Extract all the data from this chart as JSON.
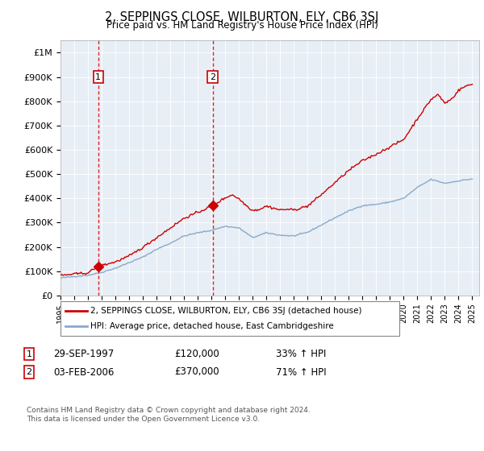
{
  "title": "2, SEPPINGS CLOSE, WILBURTON, ELY, CB6 3SJ",
  "subtitle": "Price paid vs. HM Land Registry's House Price Index (HPI)",
  "legend_line1": "2, SEPPINGS CLOSE, WILBURTON, ELY, CB6 3SJ (detached house)",
  "legend_line2": "HPI: Average price, detached house, East Cambridgeshire",
  "sale1_date": "29-SEP-1997",
  "sale1_price": "£120,000",
  "sale1_hpi": "33% ↑ HPI",
  "sale1_x": 1997.75,
  "sale1_y": 120000,
  "sale2_date": "03-FEB-2006",
  "sale2_price": "£370,000",
  "sale2_hpi": "71% ↑ HPI",
  "sale2_x": 2006.08,
  "sale2_y": 370000,
  "ylim": [
    0,
    1050000
  ],
  "xlim": [
    1995.0,
    2025.5
  ],
  "yticks": [
    0,
    100000,
    200000,
    300000,
    400000,
    500000,
    600000,
    700000,
    800000,
    900000,
    1000000
  ],
  "ytick_labels": [
    "£0",
    "£100K",
    "£200K",
    "£300K",
    "£400K",
    "£500K",
    "£600K",
    "£700K",
    "£800K",
    "£900K",
    "£1M"
  ],
  "background_color": "#ffffff",
  "plot_bg_color": "#e8eef5",
  "grid_color": "#ffffff",
  "red_line_color": "#cc0000",
  "blue_line_color": "#88aacc",
  "vline_color": "#dd2222",
  "sale_marker_color": "#cc0000",
  "footer_text": "Contains HM Land Registry data © Crown copyright and database right 2024.\nThis data is licensed under the Open Government Licence v3.0.",
  "hpi_base": {
    "1995": 72000,
    "1996": 78000,
    "1997": 83000,
    "1998": 95000,
    "1999": 112000,
    "2000": 135000,
    "2001": 158000,
    "2002": 190000,
    "2003": 215000,
    "2004": 245000,
    "2005": 258000,
    "2006": 268000,
    "2007": 285000,
    "2008": 278000,
    "2009": 238000,
    "2010": 258000,
    "2011": 248000,
    "2012": 245000,
    "2013": 260000,
    "2014": 290000,
    "2015": 320000,
    "2016": 348000,
    "2017": 370000,
    "2018": 375000,
    "2019": 385000,
    "2020": 400000,
    "2021": 445000,
    "2022": 478000,
    "2023": 462000,
    "2024": 472000,
    "2025": 480000
  },
  "red_base": {
    "1995": 82000,
    "1996": 88000,
    "1997": 93000,
    "1997.75": 120000,
    "1999": 138000,
    "2000": 162000,
    "2001": 198000,
    "2002": 238000,
    "2003": 278000,
    "2004": 318000,
    "2005": 342000,
    "2006.08": 370000,
    "2007": 402000,
    "2007.5": 415000,
    "2008": 398000,
    "2008.5": 372000,
    "2009": 350000,
    "2009.5": 355000,
    "2010": 368000,
    "2010.5": 360000,
    "2011": 352000,
    "2011.5": 355000,
    "2012": 352000,
    "2013": 368000,
    "2014": 415000,
    "2015": 465000,
    "2016": 515000,
    "2017": 555000,
    "2018": 582000,
    "2019": 612000,
    "2020": 642000,
    "2021": 728000,
    "2022": 808000,
    "2022.5": 828000,
    "2023": 792000,
    "2023.5": 810000,
    "2024": 845000,
    "2024.5": 862000,
    "2025": 870000
  }
}
